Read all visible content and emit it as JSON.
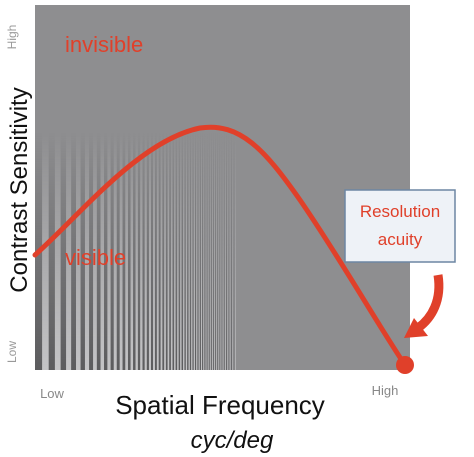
{
  "y_axis": {
    "label": "Contrast Sensitivity",
    "high": "High",
    "low": "Low"
  },
  "x_axis": {
    "label": "Spatial Frequency",
    "unit": "cyc/deg",
    "low": "Low",
    "high": "High"
  },
  "regions": {
    "upper": "invisible",
    "lower": "visible"
  },
  "callout": "Resolution acuity"
}
